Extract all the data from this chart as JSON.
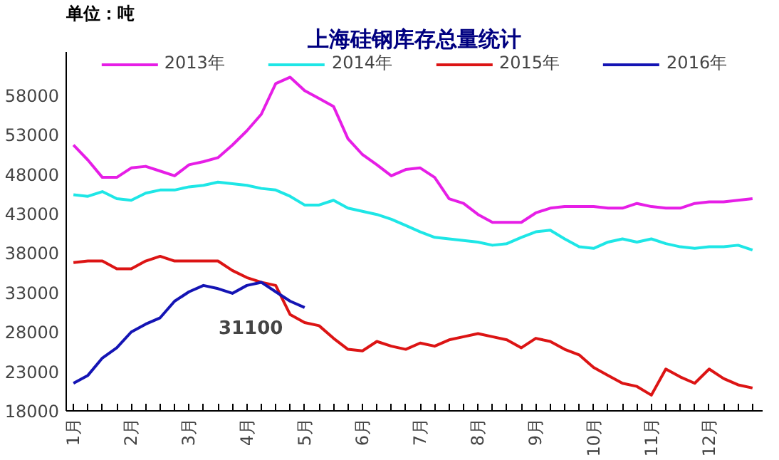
{
  "chart_data": {
    "type": "line",
    "title": "上海硅钢库存总量统计",
    "ylabel": "单位：吨",
    "categories": [
      "1月",
      null,
      null,
      null,
      "2月",
      null,
      null,
      null,
      "3月",
      null,
      null,
      null,
      "4月",
      null,
      null,
      null,
      "5月",
      null,
      null,
      null,
      "6月",
      null,
      null,
      null,
      "7月",
      null,
      null,
      null,
      "8月",
      null,
      null,
      null,
      "9月",
      null,
      null,
      null,
      "10月",
      null,
      null,
      null,
      "11月",
      null,
      null,
      null,
      "12月",
      null,
      null,
      null
    ],
    "series": [
      {
        "name": "2013年",
        "color": "#e61ee6",
        "values": [
          51700,
          49800,
          47600,
          47600,
          48800,
          49000,
          48400,
          47800,
          49200,
          49600,
          50100,
          51700,
          53500,
          55600,
          59500,
          60300,
          58600,
          57600,
          56600,
          52500,
          50500,
          49200,
          47800,
          48600,
          48800,
          47600,
          44900,
          44300,
          42900,
          41900,
          41900,
          41900,
          43100,
          43700,
          43900,
          43900,
          43900,
          43700,
          43700,
          44300,
          43900,
          43700,
          43700,
          44300,
          44500,
          44500,
          44700,
          44900
        ]
      },
      {
        "name": "2014年",
        "color": "#1ee6e6",
        "values": [
          45400,
          45200,
          45800,
          44900,
          44700,
          45600,
          46000,
          46000,
          46400,
          46600,
          47000,
          46800,
          46600,
          46200,
          46000,
          45200,
          44100,
          44100,
          44700,
          43700,
          43300,
          42900,
          42300,
          41500,
          40700,
          40000,
          39800,
          39600,
          39400,
          39000,
          39200,
          40000,
          40700,
          40900,
          39800,
          38800,
          38600,
          39400,
          39800,
          39400,
          39800,
          39200,
          38800,
          38600,
          38800,
          38800,
          39000,
          38400
        ]
      },
      {
        "name": "2015年",
        "color": "#dc1414",
        "values": [
          36800,
          37000,
          37000,
          36000,
          36000,
          37000,
          37600,
          37000,
          37000,
          37000,
          37000,
          35800,
          34900,
          34300,
          33900,
          30200,
          29200,
          28800,
          27200,
          25800,
          25600,
          26800,
          26200,
          25800,
          26600,
          26200,
          27000,
          27400,
          27800,
          27400,
          27000,
          26000,
          27200,
          26800,
          25800,
          25100,
          23500,
          22500,
          21500,
          21100,
          20000,
          23300,
          22300,
          21500,
          23300,
          22100,
          21300,
          20900
        ]
      },
      {
        "name": "2016年",
        "color": "#1414b4",
        "values": [
          21500,
          22500,
          24700,
          26000,
          28000,
          29000,
          29800,
          31900,
          33100,
          33900,
          33500,
          32900,
          33900,
          34300,
          33100,
          31900,
          31100,
          null,
          null,
          null,
          null,
          null,
          null,
          null,
          null,
          null,
          null,
          null,
          null,
          null,
          null,
          null,
          null,
          null,
          null,
          null,
          null,
          null,
          null,
          null,
          null,
          null,
          null,
          null,
          null,
          null,
          null,
          null
        ]
      }
    ],
    "ylim": [
      18000,
      63500
    ],
    "yticks": [
      18000,
      23000,
      28000,
      33000,
      38000,
      43000,
      48000,
      53000,
      58000
    ],
    "grid": false,
    "legend": "top",
    "marker": "none",
    "line_style": "solid",
    "annotations": [
      "31100"
    ]
  }
}
